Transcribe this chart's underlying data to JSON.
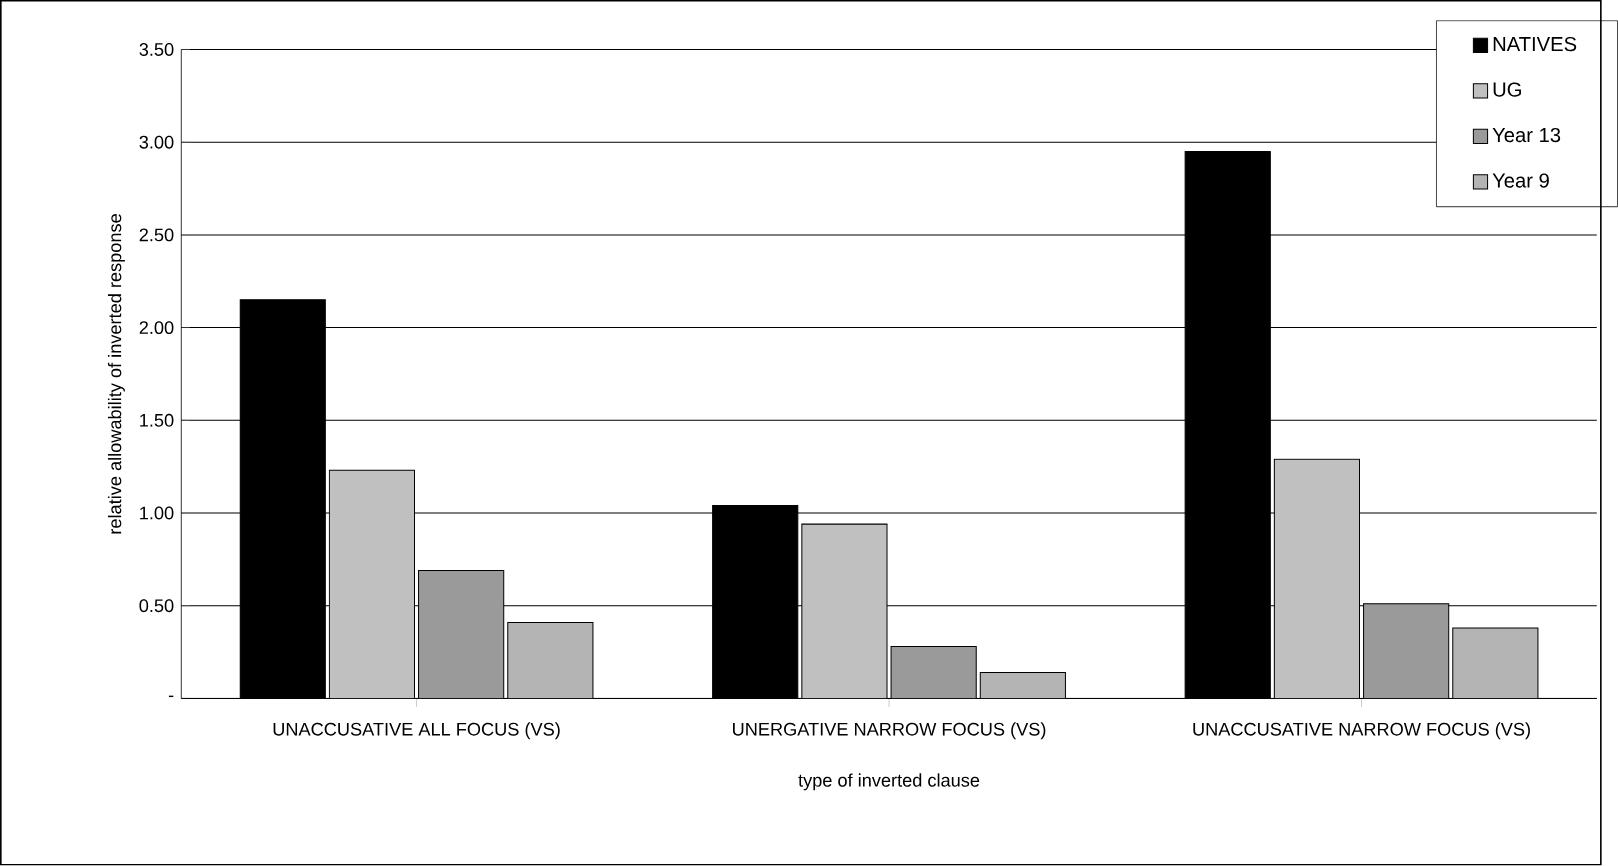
{
  "chart_data": {
    "type": "bar",
    "xlabel": "type of inverted clause",
    "ylabel": "relative allowability of inverted response",
    "categories": [
      "UNACCUSATIVE ALL FOCUS (VS)",
      "UNERGATIVE NARROW FOCUS (VS)",
      "UNACCUSATIVE NARROW FOCUS (VS)"
    ],
    "series": [
      {
        "name": "NATIVES",
        "color": "#000000",
        "values": [
          2.15,
          1.04,
          2.95
        ]
      },
      {
        "name": "UG",
        "color": "#c0c0c0",
        "values": [
          1.23,
          0.94,
          1.29
        ]
      },
      {
        "name": "Year 13",
        "color": "#9a9a9a",
        "values": [
          0.69,
          0.28,
          0.51
        ]
      },
      {
        "name": "Year 9",
        "color": "#b4b4b4",
        "values": [
          0.41,
          0.14,
          0.38
        ]
      }
    ],
    "ylim": [
      0,
      3.5
    ],
    "yticks": [
      {
        "value": 0,
        "label": "-"
      },
      {
        "value": 0.5,
        "label": "0.50"
      },
      {
        "value": 1,
        "label": "1.00"
      },
      {
        "value": 1.5,
        "label": "1.50"
      },
      {
        "value": 2,
        "label": "2.00"
      },
      {
        "value": 2.5,
        "label": "2.50"
      },
      {
        "value": 3,
        "label": "3.00"
      },
      {
        "value": 3.5,
        "label": "3.50"
      }
    ],
    "grid": "y",
    "legend": "top right"
  }
}
